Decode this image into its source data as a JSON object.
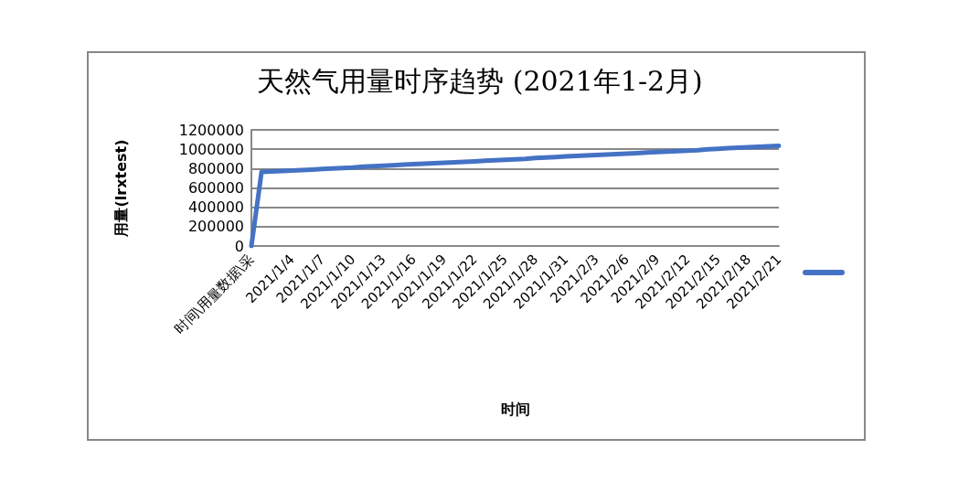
{
  "chart_data": {
    "type": "line",
    "title": "天然气用量时序趋势 (2021年1-2月)",
    "xlabel": "时间",
    "ylabel": "用量(lrxtest)",
    "categories": [
      "时间\\用量数据\\采",
      null,
      null,
      null,
      "2021/1/4",
      null,
      null,
      "2021/1/7",
      null,
      null,
      "2021/1/10",
      null,
      null,
      "2021/1/13",
      null,
      null,
      "2021/1/16",
      null,
      null,
      "2021/1/19",
      null,
      null,
      "2021/1/22",
      null,
      null,
      "2021/1/25",
      null,
      null,
      "2021/1/28",
      null,
      null,
      "2021/1/31",
      null,
      null,
      "2021/2/3",
      null,
      null,
      "2021/2/6",
      null,
      null,
      "2021/2/9",
      null,
      null,
      "2021/2/12",
      null,
      null,
      "2021/2/15",
      null,
      null,
      "2021/2/18",
      null,
      null,
      "2021/2/21"
    ],
    "series": [
      {
        "color": "#4472c4",
        "values": [
          0,
          765000,
          770000,
          775000,
          780000,
          785000,
          790000,
          795000,
          800000,
          805000,
          810000,
          820000,
          825000,
          830000,
          835000,
          840000,
          845000,
          850000,
          855000,
          860000,
          865000,
          870000,
          875000,
          880000,
          885000,
          890000,
          895000,
          900000,
          910000,
          915000,
          920000,
          925000,
          930000,
          935000,
          940000,
          945000,
          950000,
          955000,
          960000,
          965000,
          970000,
          975000,
          980000,
          985000,
          990000,
          1000000,
          1005000,
          1010000,
          1015000,
          1020000,
          1025000,
          1030000,
          1035000
        ]
      }
    ],
    "ylim": [
      0,
      1200000
    ],
    "yticks": [
      0,
      200000,
      400000,
      600000,
      800000,
      1000000,
      1200000
    ],
    "grid": "y",
    "marker": "none",
    "line_style": "solid"
  }
}
